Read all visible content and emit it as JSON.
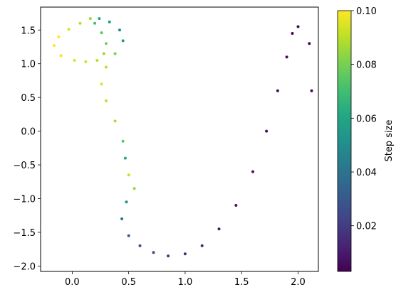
{
  "chart_data": {
    "type": "scatter",
    "title": "",
    "xlabel": "",
    "ylabel": "",
    "xlim": [
      -0.28,
      2.18
    ],
    "ylim": [
      -2.08,
      1.84
    ],
    "x_ticks": [
      0.0,
      0.5,
      1.0,
      1.5,
      2.0
    ],
    "x_tick_labels": [
      "0.0",
      "0.5",
      "1.0",
      "1.5",
      "2.0"
    ],
    "y_ticks": [
      -2.0,
      -1.5,
      -1.0,
      -0.5,
      0.0,
      0.5,
      1.0,
      1.5
    ],
    "y_tick_labels": [
      "−2.0",
      "−1.5",
      "−1.0",
      "−0.5",
      "0.0",
      "0.5",
      "1.0",
      "1.5"
    ],
    "grid": false,
    "colormap": "viridis",
    "colorbar": {
      "label": "Step size",
      "range": [
        0.003,
        0.1
      ],
      "ticks": [
        0.02,
        0.04,
        0.06,
        0.08,
        0.1
      ],
      "tick_labels": [
        "0.02",
        "0.04",
        "0.06",
        "0.08",
        "0.10"
      ]
    },
    "series": [
      {
        "marker_color_by": "Step size",
        "points": [
          [
            0.16,
            1.67,
            0.085
          ],
          [
            0.07,
            1.6,
            0.09
          ],
          [
            -0.03,
            1.51,
            0.095
          ],
          [
            -0.12,
            1.4,
            0.1
          ],
          [
            -0.16,
            1.27,
            0.1
          ],
          [
            -0.1,
            1.12,
            0.098
          ],
          [
            0.02,
            1.05,
            0.095
          ],
          [
            0.12,
            1.03,
            0.093
          ],
          [
            0.22,
            1.05,
            0.09
          ],
          [
            0.28,
            1.15,
            0.085
          ],
          [
            0.3,
            1.3,
            0.08
          ],
          [
            0.26,
            1.46,
            0.075
          ],
          [
            0.2,
            1.6,
            0.07
          ],
          [
            0.24,
            1.67,
            0.06
          ],
          [
            0.33,
            1.62,
            0.055
          ],
          [
            0.42,
            1.5,
            0.05
          ],
          [
            0.45,
            1.34,
            0.055
          ],
          [
            0.38,
            1.15,
            0.08
          ],
          [
            0.3,
            0.95,
            0.09
          ],
          [
            0.26,
            0.7,
            0.095
          ],
          [
            0.3,
            0.45,
            0.09
          ],
          [
            0.38,
            0.15,
            0.088
          ],
          [
            0.45,
            -0.15,
            0.075
          ],
          [
            0.47,
            -0.4,
            0.06
          ],
          [
            0.5,
            -0.65,
            0.092
          ],
          [
            0.55,
            -0.85,
            0.085
          ],
          [
            0.48,
            -1.05,
            0.05
          ],
          [
            0.44,
            -1.3,
            0.04
          ],
          [
            0.5,
            -1.55,
            0.03
          ],
          [
            0.6,
            -1.7,
            0.025
          ],
          [
            0.72,
            -1.8,
            0.022
          ],
          [
            0.85,
            -1.85,
            0.018
          ],
          [
            1.0,
            -1.82,
            0.015
          ],
          [
            1.15,
            -1.7,
            0.012
          ],
          [
            1.3,
            -1.45,
            0.01
          ],
          [
            1.45,
            -1.1,
            0.008
          ],
          [
            1.6,
            -0.6,
            0.007
          ],
          [
            1.72,
            0.0,
            0.006
          ],
          [
            1.82,
            0.6,
            0.006
          ],
          [
            1.9,
            1.1,
            0.005
          ],
          [
            1.95,
            1.45,
            0.005
          ],
          [
            2.0,
            1.55,
            0.005
          ],
          [
            2.1,
            1.3,
            0.005
          ],
          [
            2.12,
            0.6,
            0.005
          ]
        ]
      }
    ]
  }
}
